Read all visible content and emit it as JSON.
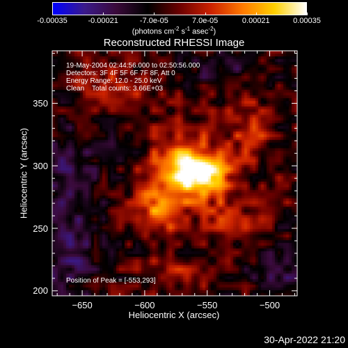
{
  "colorbar": {
    "ticks": [
      "-0.00035",
      "-0.00021",
      "-7.0e-05",
      "7.0e-05",
      "0.00021",
      "0.00035"
    ],
    "units_main": "(photons cm",
    "units_exp1": "-2",
    "units_mid": " s",
    "units_exp2": "-1",
    "units_end": " asec",
    "units_exp3": "-2",
    "units_close": ")",
    "colors": [
      "#0000ff",
      "#3a1a8a",
      "#3a0a3a",
      "#000000",
      "#6b0000",
      "#cc2200",
      "#ff7a00",
      "#ffd000",
      "#ffffff"
    ]
  },
  "info": {
    "line1": "19-May-2004 02:44:56.000 to 02:50:56.000",
    "line2": "Detectors: 3F 4F 5F 6F 7F 8F, Att 0",
    "line3": "Energy Range: 12.0 - 25.0 keV",
    "line4": "Clean    Total counts: 3.66E+03",
    "peak": "Position of Peak = [-553,293]"
  },
  "timestamp": "30-Apr-2022 21:20",
  "chart_data": {
    "type": "heatmap",
    "title": "Reconstructed RHESSI Image",
    "xlabel": "Heliocentric X (arcsec)",
    "ylabel": "Heliocentric Y (arcsec)",
    "xlim": [
      -674,
      -478
    ],
    "ylim": [
      196,
      392
    ],
    "xticks": [
      -650,
      -600,
      -550,
      -500
    ],
    "yticks": [
      200,
      250,
      300,
      350
    ],
    "xtick_labels": [
      "−650",
      "−600",
      "−550",
      "−500"
    ],
    "ytick_labels": [
      "200",
      "250",
      "300",
      "350"
    ],
    "value_range": [
      -0.00035,
      0.00035
    ],
    "peak": [
      -553,
      293
    ],
    "sources": [
      {
        "x": -553,
        "y": 293,
        "value": 0.00035,
        "sx": 14,
        "sy": 10
      },
      {
        "x": -570,
        "y": 305,
        "value": 0.00022,
        "sx": 20,
        "sy": 18
      },
      {
        "x": -582,
        "y": 275,
        "value": 0.00016,
        "sx": 16,
        "sy": 16
      },
      {
        "x": -590,
        "y": 258,
        "value": 0.00012,
        "sx": 10,
        "sy": 12
      },
      {
        "x": -540,
        "y": 262,
        "value": 0.0001,
        "sx": 10,
        "sy": 16
      },
      {
        "x": -625,
        "y": 362,
        "value": 0.00012,
        "sx": 22,
        "sy": 12
      },
      {
        "x": -515,
        "y": 320,
        "value": 0.0001,
        "sx": 12,
        "sy": 12
      },
      {
        "x": -520,
        "y": 340,
        "value": 8e-05,
        "sx": 14,
        "sy": 12
      },
      {
        "x": -575,
        "y": 215,
        "value": 9e-05,
        "sx": 22,
        "sy": 10
      },
      {
        "x": -520,
        "y": 255,
        "value": 8e-05,
        "sx": 10,
        "sy": 10
      },
      {
        "x": -500,
        "y": 275,
        "value": 6e-05,
        "sx": 10,
        "sy": 10
      },
      {
        "x": -660,
        "y": 225,
        "value": -0.00012,
        "sx": 16,
        "sy": 30
      },
      {
        "x": -660,
        "y": 295,
        "value": -0.00011,
        "sx": 16,
        "sy": 30
      },
      {
        "x": -495,
        "y": 215,
        "value": -0.00013,
        "sx": 14,
        "sy": 12
      },
      {
        "x": -540,
        "y": 378,
        "value": -9e-05,
        "sx": 22,
        "sy": 10
      },
      {
        "x": -615,
        "y": 315,
        "value": -6e-05,
        "sx": 12,
        "sy": 12
      }
    ]
  }
}
